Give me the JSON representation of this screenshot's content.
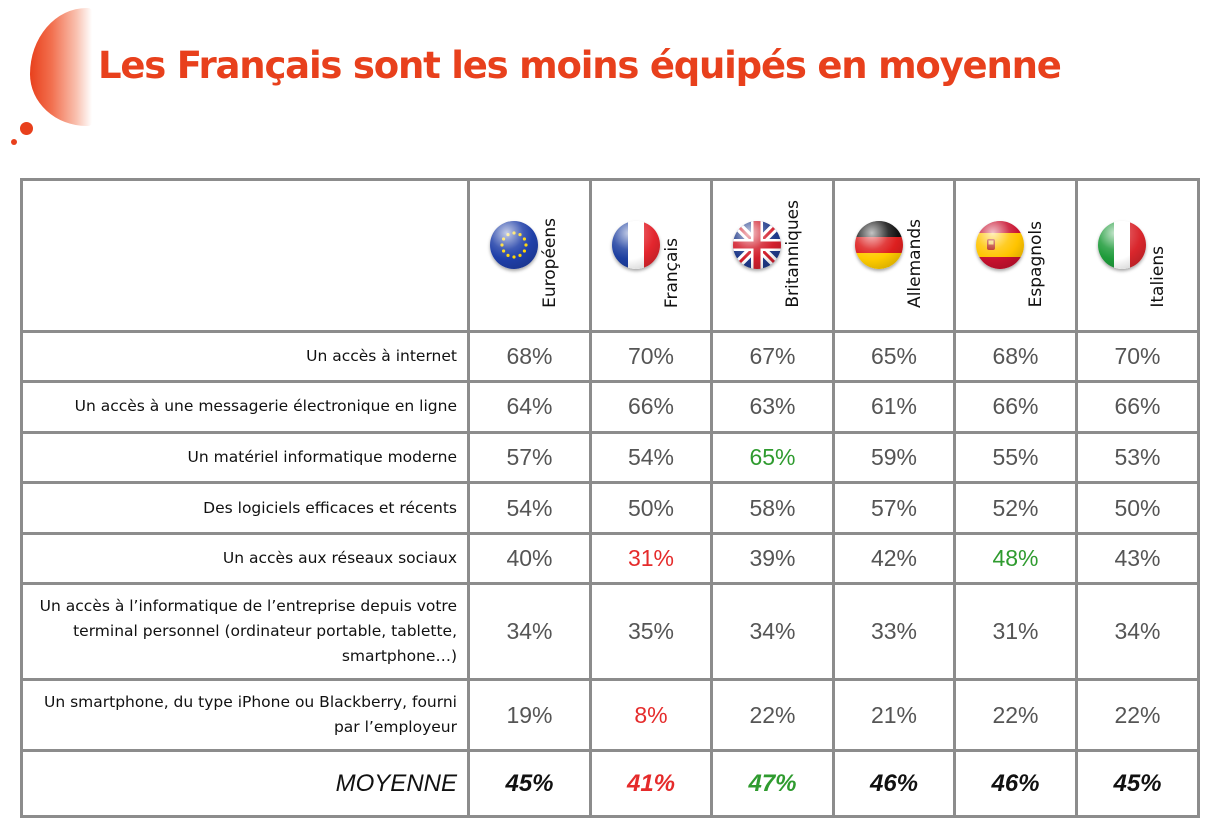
{
  "title": "Les Français sont les moins équipés en moyenne",
  "countries": [
    {
      "name": "Européens",
      "flag": "eu-flag-icon"
    },
    {
      "name": "Français",
      "flag": "france-flag-icon"
    },
    {
      "name": "Britanniques",
      "flag": "uk-flag-icon"
    },
    {
      "name": "Allemands",
      "flag": "germany-flag-icon"
    },
    {
      "name": "Espagnols",
      "flag": "spain-flag-icon"
    },
    {
      "name": "Italiens",
      "flag": "italy-flag-icon"
    }
  ],
  "rows": [
    {
      "label": "Un accès à internet",
      "values": [
        "68%",
        "70%",
        "67%",
        "65%",
        "68%",
        "70%"
      ]
    },
    {
      "label": "Un accès à une messagerie électronique en ligne",
      "values": [
        "64%",
        "66%",
        "63%",
        "61%",
        "66%",
        "66%"
      ]
    },
    {
      "label": "Un matériel informatique moderne",
      "values": [
        "57%",
        "54%",
        "65%",
        "59%",
        "55%",
        "53%"
      ]
    },
    {
      "label": "Des logiciels efficaces et récents",
      "values": [
        "54%",
        "50%",
        "58%",
        "57%",
        "52%",
        "50%"
      ]
    },
    {
      "label": "Un accès aux réseaux sociaux",
      "values": [
        "40%",
        "31%",
        "39%",
        "42%",
        "48%",
        "43%"
      ]
    },
    {
      "label": "Un accès à l’informatique de l’entreprise depuis votre terminal personnel (ordinateur portable, tablette, smartphone…)",
      "values": [
        "34%",
        "35%",
        "34%",
        "33%",
        "31%",
        "34%"
      ]
    },
    {
      "label": "Un smartphone, du type iPhone ou Blackberry, fourni par l’employeur",
      "values": [
        "19%",
        "8%",
        "22%",
        "21%",
        "22%",
        "22%"
      ]
    }
  ],
  "average": {
    "label": "MOYENNE",
    "values": [
      "45%",
      "41%",
      "47%",
      "46%",
      "46%",
      "45%"
    ]
  },
  "colors": {
    "accent": "#e8401c",
    "highlight_low": "#e52b2b",
    "highlight_high": "#2f9b2f",
    "value": "#555555",
    "border": "#8c8c8c"
  }
}
